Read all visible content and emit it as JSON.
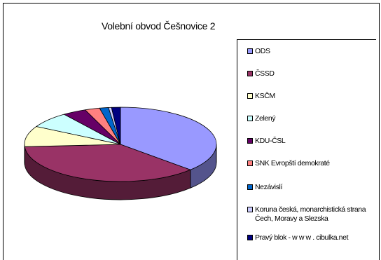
{
  "chart_data": {
    "type": "pie",
    "title": "Volební obvod Češnovice 2",
    "legend_position": "right",
    "categories": [
      "ODS",
      "ČSSD",
      "KSČM",
      "Zelený",
      "KDU-ČSL",
      "SNK Evropští demokraté",
      "Nezávislí",
      "Koruna česká, monarchistická strana Čech, Moravy a Slezska",
      "Pravý blok - w w w . cibulka.net"
    ],
    "values": [
      37,
      37,
      9,
      7,
      4,
      2.5,
      1.5,
      0.5,
      1.5
    ],
    "colors": [
      "#9999ff",
      "#993366",
      "#ffffcc",
      "#ccffff",
      "#660066",
      "#ff8080",
      "#0066cc",
      "#ccccff",
      "#000080"
    ]
  }
}
